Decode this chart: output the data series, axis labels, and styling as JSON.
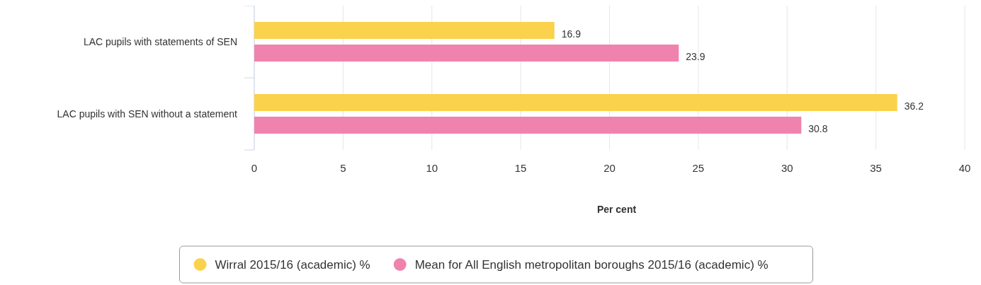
{
  "chart_data": {
    "type": "bar",
    "orientation": "horizontal",
    "xlabel": "Per cent",
    "categories": [
      "LAC pupils with statements of SEN",
      "LAC pupils with SEN without a statement"
    ],
    "series": [
      {
        "name": "Wirral 2015/16 (academic) %",
        "color": "#fad24b",
        "values": [
          16.9,
          36.2
        ]
      },
      {
        "name": "Mean for All English metropolitan boroughs 2015/16 (academic) %",
        "color": "#ef83ad",
        "values": [
          23.9,
          30.8
        ]
      }
    ],
    "xlim": [
      0,
      40
    ],
    "xticks": [
      0,
      5,
      10,
      15,
      20,
      25,
      30,
      35,
      40
    ],
    "grid": "x",
    "legend": "bottom",
    "data_labels": true
  }
}
